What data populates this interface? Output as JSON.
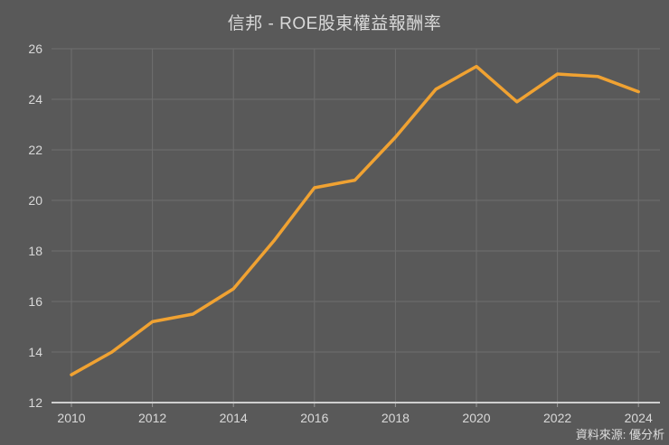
{
  "header": {
    "title": "信邦 - ROE股東權益報酬率"
  },
  "footer": {
    "source": "資料來源: 優分析"
  },
  "colors": {
    "background": "#595959",
    "line": "#F0A232",
    "grid": "#6E6E6E",
    "axis_line": "#CFCFCF",
    "tick": "#9A9A9A",
    "text": "#D9D9D9"
  },
  "chart_data": {
    "type": "line",
    "title": "信邦 - ROE股東權益報酬率",
    "series_name": "ROE股東權益報酬率",
    "x": [
      2010,
      2011,
      2012,
      2013,
      2014,
      2015,
      2016,
      2017,
      2018,
      2019,
      2020,
      2021,
      2022,
      2023,
      2024
    ],
    "values": [
      13.1,
      14.0,
      15.2,
      15.5,
      16.5,
      18.4,
      20.5,
      20.8,
      22.5,
      24.4,
      25.3,
      23.9,
      25.0,
      24.9,
      24.3
    ],
    "xticks": [
      2010,
      2012,
      2014,
      2016,
      2018,
      2020,
      2022,
      2024
    ],
    "yticks": [
      12,
      14,
      16,
      18,
      20,
      22,
      24,
      26
    ],
    "ylim": [
      12,
      26
    ],
    "xlabel": "",
    "ylabel": "",
    "grid": true,
    "legend_position": "none",
    "source": "資料來源: 優分析"
  }
}
